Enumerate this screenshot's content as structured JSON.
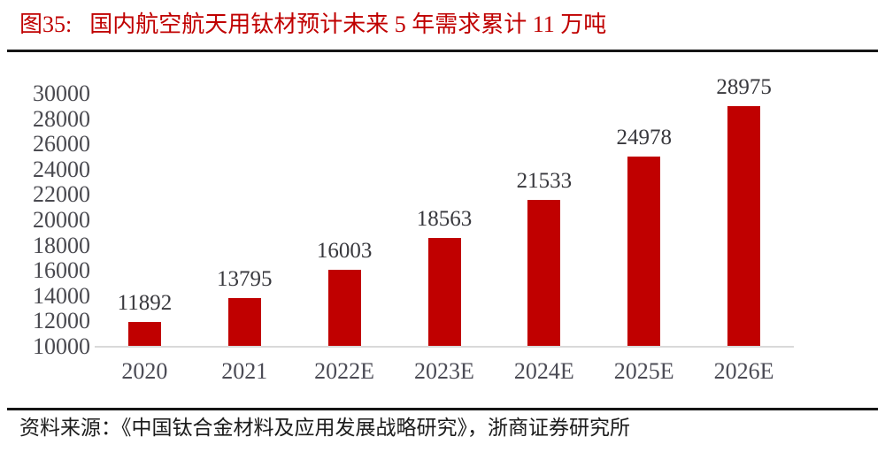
{
  "header": {
    "figure_label": "图35:",
    "title": "国内航空航天用钛材预计未来 5 年需求累计 11 万吨"
  },
  "chart_data": {
    "type": "bar",
    "title": "国内航空航天用钛材预计未来 5 年需求累计 11 万吨",
    "categories": [
      "2020",
      "2021",
      "2022E",
      "2023E",
      "2024E",
      "2025E",
      "2026E"
    ],
    "values": [
      11892,
      13795,
      16003,
      18563,
      21533,
      24978,
      28975
    ],
    "xlabel": "",
    "ylabel": "",
    "ylim": [
      10000,
      30000
    ],
    "ytick_step": 2000,
    "yticks": [
      10000,
      12000,
      14000,
      16000,
      18000,
      20000,
      22000,
      24000,
      26000,
      28000,
      30000
    ],
    "grid": false,
    "legend": false,
    "data_labels": true,
    "bar_color": "#c00000",
    "value_label_color": "#38383d",
    "axis_label_color": "#4b4b55",
    "axis_line_color": "#d9d9d9"
  },
  "source": {
    "label": "资料来源：",
    "text": "《中国钛合金材料及应用发展战略研究》，浙商证券研究所"
  },
  "colors": {
    "title_red": "#c00000",
    "divider": "#161616"
  }
}
